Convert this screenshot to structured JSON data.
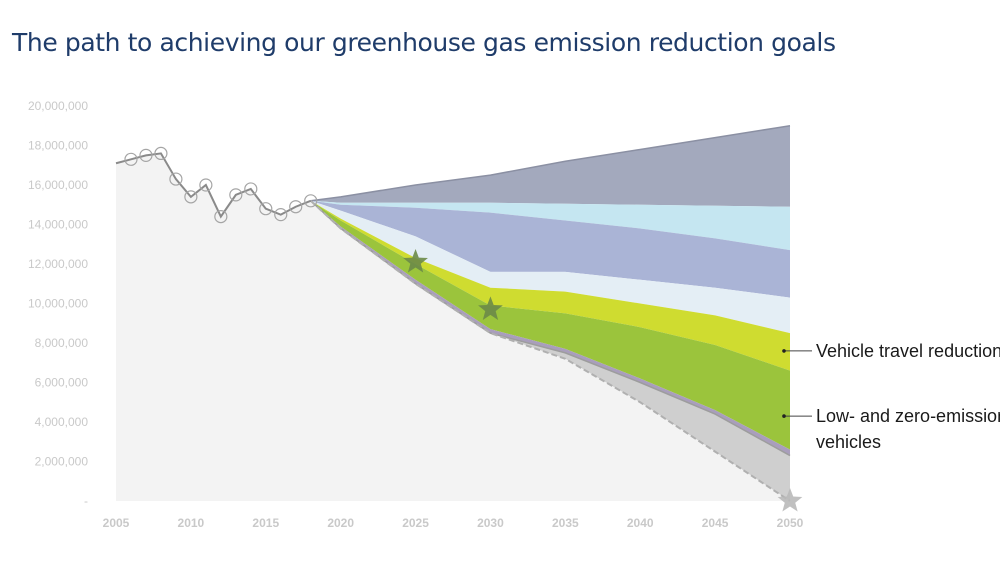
{
  "title": "The path to achieving our greenhouse gas emission reduction goals",
  "chart_data": {
    "type": "area",
    "title": "The path to achieving our greenhouse gas emission reduction goals",
    "xlabel": "",
    "ylabel": "",
    "xlim": [
      2005,
      2050
    ],
    "ylim": [
      0,
      20000000
    ],
    "x_ticks": [
      2005,
      2010,
      2015,
      2020,
      2025,
      2030,
      2035,
      2040,
      2045,
      2050
    ],
    "y_ticks": [
      0,
      2000000,
      4000000,
      6000000,
      8000000,
      10000000,
      12000000,
      14000000,
      16000000,
      18000000,
      20000000
    ],
    "y_tick_labels": [
      "-",
      "2,000,000",
      "4,000,000",
      "6,000,000",
      "8,000,000",
      "10,000,000",
      "12,000,000",
      "14,000,000",
      "16,000,000",
      "18,000,000",
      "20,000,000"
    ],
    "grid": false,
    "colors": {
      "history_fill": "#f3f3f3",
      "history_line": "#8a8a8a",
      "band_top": "#a3a9bd",
      "band_lightblue": "#c5e6f1",
      "band_blue": "#aab4d6",
      "band_pale": "#e4eef5",
      "vehicle_travel_reduction": "#cfdc30",
      "low_zero_emissions_vehicles": "#9bc43c",
      "band_lavender": "#a99ebc",
      "remaining_gap": "#cfcfcf",
      "stars": "#6b8a48",
      "final_star": "#b9b9b9"
    },
    "historical": {
      "x": [
        2005,
        2006,
        2007,
        2008,
        2009,
        2010,
        2011,
        2012,
        2013,
        2014,
        2015,
        2016,
        2017,
        2018
      ],
      "y": [
        17100000,
        17300000,
        17500000,
        17600000,
        16300000,
        15400000,
        16000000,
        14400000,
        15500000,
        15800000,
        14800000,
        14500000,
        14900000,
        15200000
      ],
      "markers_from_index": 1
    },
    "projection_x": [
      2018,
      2020,
      2025,
      2030,
      2035,
      2040,
      2045,
      2050
    ],
    "boundaries": [
      [
        15200000,
        15400000,
        16000000,
        16500000,
        17200000,
        17800000,
        18400000,
        19000000
      ],
      [
        15200000,
        15100000,
        15100000,
        15100000,
        15050000,
        15000000,
        14950000,
        14900000
      ],
      [
        15200000,
        15000000,
        14850000,
        14600000,
        14200000,
        13800000,
        13300000,
        12700000
      ],
      [
        15200000,
        14700000,
        13400000,
        11600000,
        11600000,
        11200000,
        10800000,
        10300000
      ],
      [
        15200000,
        14300000,
        12300000,
        10800000,
        10600000,
        10000000,
        9400000,
        8500000
      ],
      [
        15200000,
        14200000,
        12000000,
        9900000,
        9500000,
        8800000,
        7900000,
        6600000
      ],
      [
        15200000,
        13900000,
        11200000,
        8700000,
        7700000,
        6200000,
        4600000,
        2600000
      ],
      [
        15200000,
        13800000,
        11000000,
        8500000,
        7500000,
        6000000,
        4400000,
        2300000
      ],
      [
        15200000,
        13800000,
        11000000,
        8500000,
        7200000,
        5000000,
        2500000,
        0
      ]
    ],
    "series": [
      {
        "values": [
          0,
          0,
          0,
          0,
          0,
          0,
          0,
          0
        ]
      },
      {
        "values": [
          0,
          0,
          0,
          0,
          0,
          0,
          0,
          0
        ]
      },
      {
        "values": [
          0,
          0,
          0,
          0,
          0,
          0,
          0,
          0
        ]
      },
      {
        "values": [
          0,
          0,
          0,
          0,
          0,
          0,
          0,
          0
        ]
      },
      {
        "name": "Vehicle travel reduction",
        "values": [
          0,
          0,
          0,
          0,
          0,
          0,
          0,
          0
        ]
      },
      {
        "name": "Low- and zero-emissions vehicles",
        "values": [
          0,
          0,
          0,
          0,
          0,
          0,
          0,
          0
        ]
      },
      {
        "values": [
          0,
          0,
          0,
          0,
          0,
          0,
          0,
          0
        ]
      },
      {
        "values": [
          0,
          0,
          0,
          0,
          0,
          0,
          0,
          0
        ]
      }
    ],
    "stars": [
      {
        "x": 2025,
        "y": 12100000
      },
      {
        "x": 2030,
        "y": 9700000
      },
      {
        "x": 2050,
        "y": 0
      }
    ],
    "annotations": [
      {
        "text": "Vehicle travel reduction",
        "lines": [
          "Vehicle travel reduction"
        ],
        "x": 2050,
        "y": 7600000
      },
      {
        "text": "Low- and zero-emissions vehicles",
        "lines": [
          "Low- and zero-emissions",
          "vehicles"
        ],
        "x": 2050,
        "y": 4300000
      }
    ]
  }
}
